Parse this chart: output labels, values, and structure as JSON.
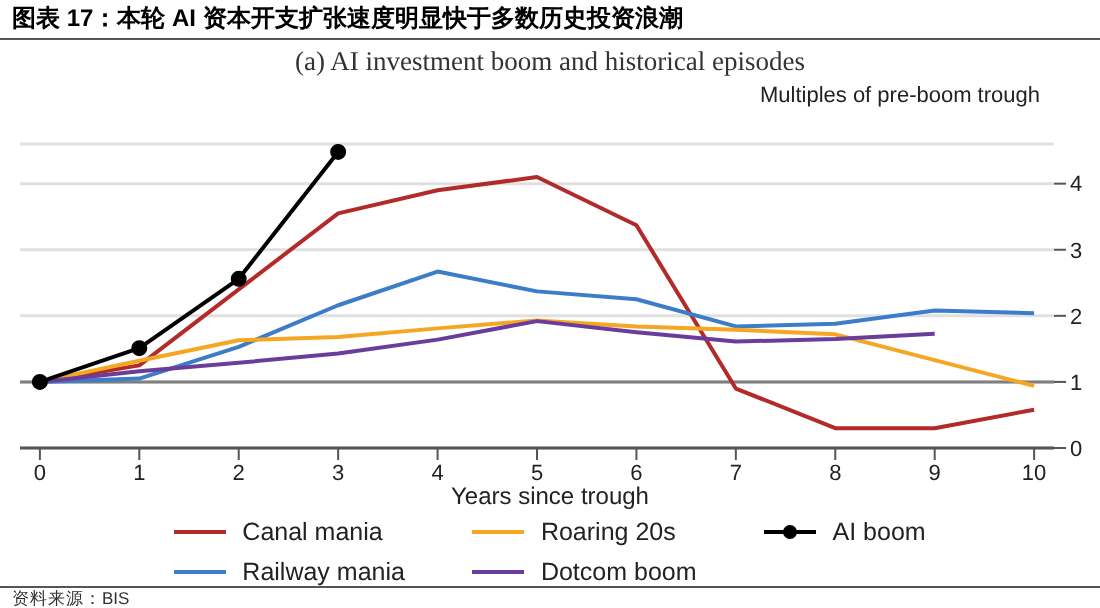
{
  "chart_data": {
    "type": "line",
    "title": "图表 17：本轮 AI 资本开支扩张速度明显快于多数历史投资浪潮",
    "subtitle": "(a) AI investment boom and historical episodes",
    "xlabel": "Years since trough",
    "ylabel": "Multiples of pre-boom trough",
    "annotations": [
      "资料来源：BIS"
    ],
    "x": [
      0,
      1,
      2,
      3,
      4,
      5,
      6,
      7,
      8,
      9,
      10
    ],
    "series": [
      {
        "name": "Canal mania",
        "color": "#b22a2a",
        "marker": "none",
        "values": [
          1,
          1.25,
          2.4,
          3.55,
          3.9,
          4.1,
          3.37,
          0.9,
          0.3,
          0.3,
          0.58
        ]
      },
      {
        "name": "Railway mania",
        "color": "#3d7cc9",
        "marker": "none",
        "values": [
          1,
          1.05,
          1.53,
          2.16,
          2.67,
          2.37,
          2.25,
          1.84,
          1.88,
          2.08,
          2.04
        ]
      },
      {
        "name": "Roaring 20s",
        "color": "#f5a623",
        "marker": "none",
        "values": [
          1,
          1.32,
          1.63,
          1.68,
          1.81,
          1.93,
          1.84,
          1.79,
          1.72,
          1.33,
          0.94
        ]
      },
      {
        "name": "Dotcom boom",
        "color": "#6a3d9a",
        "marker": "none",
        "values": [
          1,
          1.16,
          1.29,
          1.43,
          1.64,
          1.92,
          1.75,
          1.61,
          1.65,
          1.73,
          null
        ]
      },
      {
        "name": "AI boom",
        "color": "#000000",
        "marker": "circle",
        "values": [
          1,
          1.51,
          2.56,
          4.48,
          null,
          null,
          null,
          null,
          null,
          null,
          null
        ]
      }
    ],
    "xlim": [
      -0.2,
      10.2
    ],
    "xticks": [
      0,
      1,
      2,
      3,
      4,
      5,
      6,
      7,
      8,
      9,
      10
    ],
    "ylim": [
      0,
      4.6
    ],
    "yticks": [
      0,
      1,
      2,
      3,
      4
    ],
    "ref_lines": [
      {
        "axis": "y",
        "value": 1,
        "color": "#7f7f7f"
      }
    ],
    "grid": "y",
    "legend": "bottom",
    "line_style": "solid"
  }
}
